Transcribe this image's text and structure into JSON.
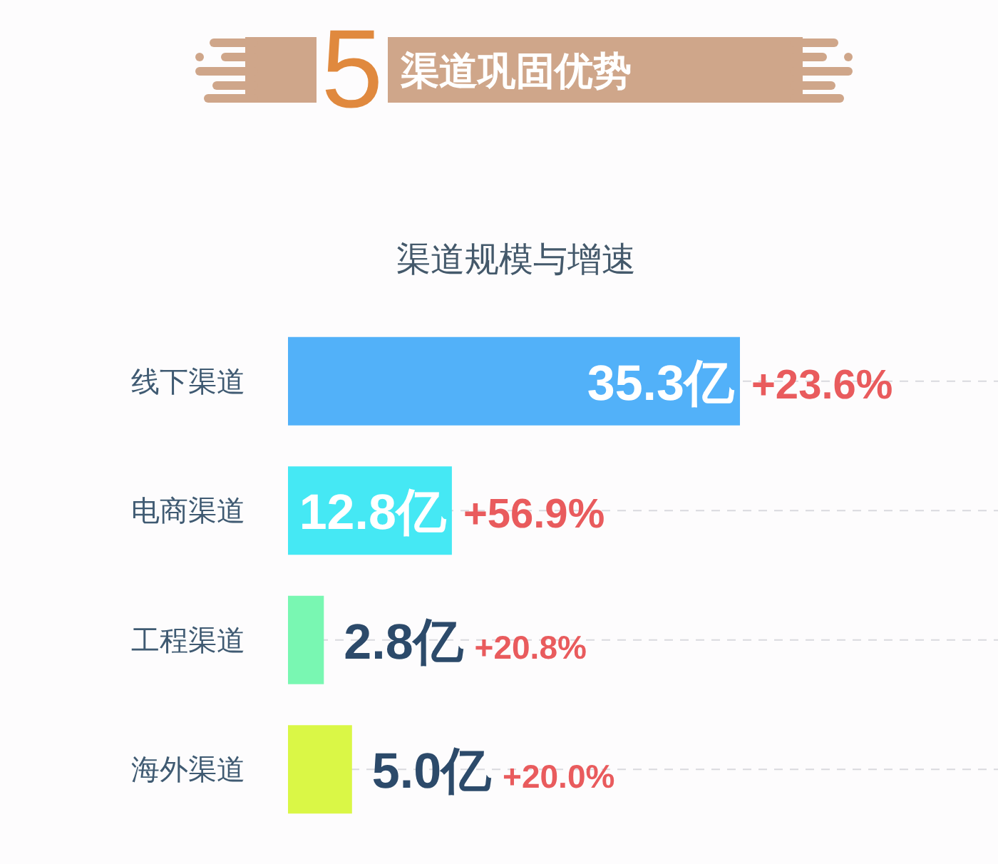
{
  "chart_data": {
    "type": "bar",
    "orientation": "horizontal",
    "title": "渠道巩固优势",
    "subtitle": "渠道规模与增速",
    "categories": [
      "线下渠道",
      "电商渠道",
      "工程渠道",
      "海外渠道"
    ],
    "values": [
      35.3,
      12.8,
      2.8,
      5.0
    ],
    "colors": [
      "#52b1f9",
      "#45e8f4",
      "#79f7b2",
      "#daf746"
    ],
    "value_labels": [
      "35.3亿",
      "12.8亿",
      "2.8亿",
      "5.0亿"
    ],
    "annotations": [
      "5",
      "+23.6%",
      "+56.9%",
      "+20.8%",
      "+20.0%"
    ],
    "grid": "y"
  }
}
